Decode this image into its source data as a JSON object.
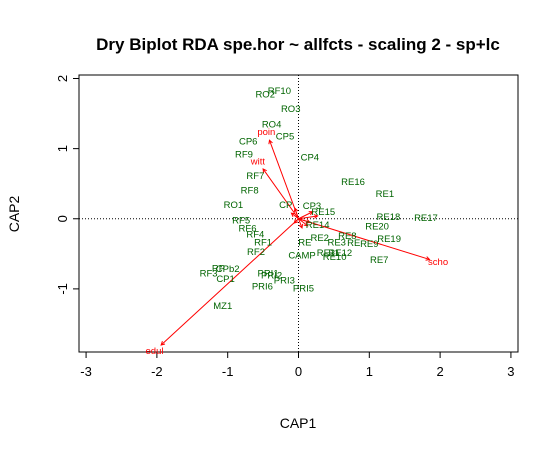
{
  "chart_data": {
    "type": "scatter",
    "title": "Dry Biplot RDA spe.hor ~ allfcts - scaling 2 - sp+lc",
    "xlabel": "CAP1",
    "ylabel": "CAP2",
    "xlim": [
      -3.1,
      3.1
    ],
    "ylim": [
      -1.9,
      2.05
    ],
    "xticks": [
      "-3",
      "-2",
      "-1",
      "0",
      "1",
      "2",
      "3"
    ],
    "yticks": [
      "-1",
      "0",
      "1",
      "2"
    ],
    "colors": {
      "sites": "#006400",
      "arrows": "#ff0000",
      "axes": "#000000"
    },
    "reference_lines": {
      "x": 0,
      "y": 0,
      "style": "dotted"
    },
    "sites": [
      {
        "label": "RO2",
        "x": -0.47,
        "y": 1.78
      },
      {
        "label": "RF10",
        "x": -0.27,
        "y": 1.83
      },
      {
        "label": "RO3",
        "x": -0.11,
        "y": 1.57
      },
      {
        "label": "RO4",
        "x": -0.38,
        "y": 1.35
      },
      {
        "label": "CP6",
        "x": -0.71,
        "y": 1.11
      },
      {
        "label": "CP5",
        "x": -0.19,
        "y": 1.18
      },
      {
        "label": "RF9",
        "x": -0.77,
        "y": 0.92
      },
      {
        "label": "CP4",
        "x": 0.16,
        "y": 0.88
      },
      {
        "label": "RF7",
        "x": -0.61,
        "y": 0.62
      },
      {
        "label": "RF8",
        "x": -0.69,
        "y": 0.41
      },
      {
        "label": "RO1",
        "x": -0.92,
        "y": 0.2
      },
      {
        "label": "CP3",
        "x": 0.19,
        "y": 0.19
      },
      {
        "label": "CP",
        "x": -0.18,
        "y": 0.2
      },
      {
        "label": "RE16",
        "x": 0.77,
        "y": 0.53
      },
      {
        "label": "RE1",
        "x": 1.22,
        "y": 0.36
      },
      {
        "label": "RE18",
        "x": 1.27,
        "y": 0.03
      },
      {
        "label": "RE17",
        "x": 1.8,
        "y": 0.02
      },
      {
        "label": "RE20",
        "x": 1.11,
        "y": -0.1
      },
      {
        "label": "RE19",
        "x": 1.28,
        "y": -0.28
      },
      {
        "label": "RE7",
        "x": 1.14,
        "y": -0.58
      },
      {
        "label": "RE14",
        "x": 0.27,
        "y": -0.08
      },
      {
        "label": "RE15",
        "x": 0.35,
        "y": 0.1
      },
      {
        "label": "RF5",
        "x": -0.81,
        "y": -0.02
      },
      {
        "label": "RF6",
        "x": -0.72,
        "y": -0.13
      },
      {
        "label": "RF4",
        "x": -0.61,
        "y": -0.22
      },
      {
        "label": "RF1",
        "x": -0.5,
        "y": -0.33
      },
      {
        "label": "RF2",
        "x": -0.6,
        "y": -0.47
      },
      {
        "label": "RE2",
        "x": 0.3,
        "y": -0.27
      },
      {
        "label": "RE",
        "x": 0.09,
        "y": -0.33
      },
      {
        "label": "RE3",
        "x": 0.54,
        "y": -0.33
      },
      {
        "label": "RE8",
        "x": 0.69,
        "y": -0.24
      },
      {
        "label": "RE",
        "x": 0.78,
        "y": -0.34
      },
      {
        "label": "RE9",
        "x": 1.0,
        "y": -0.35
      },
      {
        "label": "RE11",
        "x": 0.42,
        "y": -0.48
      },
      {
        "label": "RE12",
        "x": 0.59,
        "y": -0.48
      },
      {
        "label": "RE10",
        "x": 0.51,
        "y": -0.54
      },
      {
        "label": "CAMP",
        "x": 0.05,
        "y": -0.52
      },
      {
        "label": "RP",
        "x": -1.13,
        "y": -0.7
      },
      {
        "label": "RF3",
        "x": -1.27,
        "y": -0.77
      },
      {
        "label": "CPb2",
        "x": -1.0,
        "y": -0.71
      },
      {
        "label": "CP1",
        "x": -1.03,
        "y": -0.85
      },
      {
        "label": "PRI1",
        "x": -0.43,
        "y": -0.77
      },
      {
        "label": "PRI2",
        "x": -0.38,
        "y": -0.8
      },
      {
        "label": "PRI3",
        "x": -0.2,
        "y": -0.87
      },
      {
        "label": "PRI6",
        "x": -0.51,
        "y": -0.96
      },
      {
        "label": "PRI5",
        "x": 0.07,
        "y": -0.99
      },
      {
        "label": "MZ1",
        "x": -1.07,
        "y": -1.24
      }
    ],
    "arrows": [
      {
        "label": "poin",
        "x": -0.41,
        "y": 1.12
      },
      {
        "label": "witt",
        "x": -0.5,
        "y": 0.71
      },
      {
        "label": "edul",
        "x": -1.94,
        "y": -1.8
      },
      {
        "label": "scho",
        "x": 1.85,
        "y": -0.58
      },
      {
        "label": "",
        "x": -0.05,
        "y": 0.15
      },
      {
        "label": "",
        "x": 0.2,
        "y": 0.1
      },
      {
        "label": "",
        "x": 0.27,
        "y": 0.04
      },
      {
        "label": "",
        "x": 0.16,
        "y": -0.05
      },
      {
        "label": "",
        "x": 0.13,
        "y": -0.1
      },
      {
        "label": "",
        "x": 0.05,
        "y": -0.13
      },
      {
        "label": "",
        "x": -0.1,
        "y": 0.08
      },
      {
        "label": "",
        "x": -0.06,
        "y": -0.06
      }
    ]
  }
}
